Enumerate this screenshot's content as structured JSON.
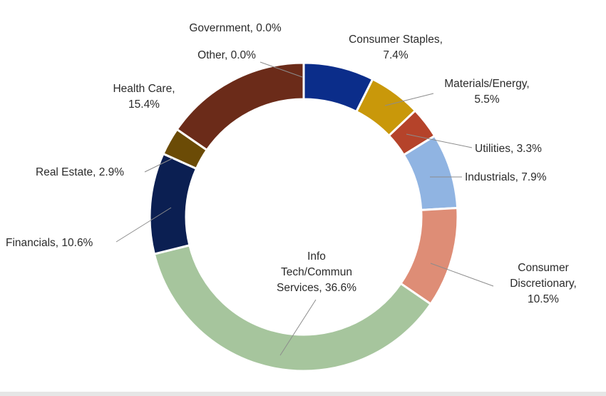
{
  "chart_data": {
    "type": "pie",
    "variant": "donut",
    "title": "",
    "start": "top, clockwise",
    "slices": [
      {
        "label": "Consumer Staples",
        "value": 7.4,
        "text": "7.4%",
        "color": "#0b2d8a"
      },
      {
        "label": "Materials/Energy",
        "value": 5.5,
        "text": "5.5%",
        "color": "#c9980a"
      },
      {
        "label": "Utilities",
        "value": 3.3,
        "text": "3.3%",
        "color": "#b5432a"
      },
      {
        "label": "Industrials",
        "value": 7.9,
        "text": "7.9%",
        "color": "#90b4e2"
      },
      {
        "label": "Consumer Discretionary",
        "value": 10.5,
        "text": "10.5%",
        "color": "#de8d76"
      },
      {
        "label": "Info Tech/Commun Services",
        "value": 36.6,
        "text": "36.6%",
        "color": "#a6c59d"
      },
      {
        "label": "Financials",
        "value": 10.6,
        "text": "10.6%",
        "color": "#0b1f52"
      },
      {
        "label": "Real Estate",
        "value": 2.9,
        "text": "2.9%",
        "color": "#6b4b06"
      },
      {
        "label": "Health Care",
        "value": 15.4,
        "text": "15.4%",
        "color": "#6b2b19"
      },
      {
        "label": "Other",
        "value": 0.0,
        "text": "0.0%",
        "color": "#7f7f7f"
      },
      {
        "label": "Government",
        "value": 0.0,
        "text": "0.0%",
        "color": "#5a5a5a"
      }
    ],
    "slice_labels": [
      [
        "Consumer Staples,",
        "7.4%"
      ],
      [
        "Materials/Energy,",
        "5.5%"
      ],
      [
        "Utilities, 3.3%"
      ],
      [
        "Industrials, 7.9%"
      ],
      [
        "Consumer",
        "Discretionary,",
        "10.5%"
      ],
      [
        "Info",
        "Tech/Commun",
        "Services, 36.6%"
      ],
      [
        "Financials, 10.6%"
      ],
      [
        "Real Estate, 2.9%"
      ],
      [
        "Health Care,",
        "15.4%"
      ],
      [
        "Other, 0.0%"
      ],
      [
        "Government, 0.0%"
      ]
    ]
  }
}
